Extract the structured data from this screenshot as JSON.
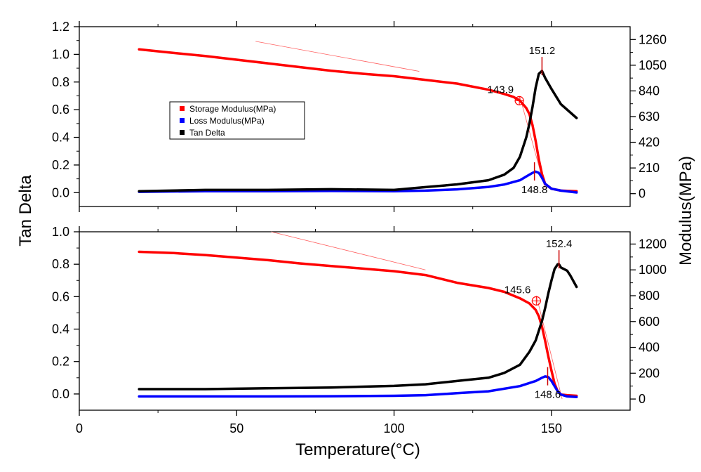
{
  "chart_data": {
    "type": "line",
    "xlabel": "Temperature(°C)",
    "xlim": [
      0,
      175
    ],
    "xticks": [
      0,
      50,
      100,
      150
    ],
    "left_ylabel": "Tan Delta",
    "right_ylabel": "Modulus(MPa)",
    "legend": {
      "placement": "center-left of top panel",
      "entries": [
        "Storage Modulus(MPa)",
        "Loss Modulus(MPa)",
        "Tan Delta"
      ]
    },
    "colors": {
      "storage": "#ff0000",
      "loss": "#0000ff",
      "tan": "#000000",
      "tangent": "#ff6060"
    },
    "panels": [
      {
        "left_ylim": [
          -0.1,
          1.2
        ],
        "left_ticks": [
          "0.0",
          "0.2",
          "0.4",
          "0.6",
          "0.8",
          "1.0",
          "1.2"
        ],
        "right_ylim": [
          -105,
          1365
        ],
        "right_ticks": [
          "0",
          "210",
          "420",
          "630",
          "840",
          "1050",
          "1260"
        ],
        "series": [
          {
            "name": "Storage Modulus(MPa)",
            "axis": "right",
            "x": [
              19,
              30,
              40,
              50,
              60,
              70,
              80,
              90,
              100,
              110,
              120,
              130,
              135,
              138,
              140,
              142,
              143,
              144,
              145,
              146,
              147,
              148,
              150,
              153,
              158
            ],
            "y": [
              1180,
              1150,
              1125,
              1095,
              1065,
              1035,
              1005,
              980,
              960,
              930,
              900,
              850,
              815,
              790,
              760,
              700,
              650,
              560,
              430,
              280,
              160,
              80,
              40,
              25,
              20
            ]
          },
          {
            "name": "Loss Modulus(MPa)",
            "axis": "right",
            "x": [
              19,
              40,
              60,
              80,
              100,
              110,
              120,
              130,
              135,
              140,
              142,
              144,
              145,
              146,
              147,
              148,
              150,
              153,
              158
            ],
            "y": [
              15,
              20,
              20,
              22,
              20,
              25,
              35,
              55,
              75,
              110,
              140,
              170,
              180,
              170,
              130,
              80,
              40,
              25,
              10
            ]
          },
          {
            "name": "Tan Delta",
            "axis": "left",
            "x": [
              19,
              40,
              60,
              80,
              100,
              110,
              120,
              130,
              135,
              138,
              140,
              142,
              143,
              144,
              145,
              146,
              147,
              148,
              150,
              153,
              158
            ],
            "y": [
              0.01,
              0.02,
              0.02,
              0.025,
              0.02,
              0.04,
              0.06,
              0.09,
              0.13,
              0.18,
              0.26,
              0.4,
              0.5,
              0.62,
              0.76,
              0.86,
              0.88,
              0.83,
              0.75,
              0.64,
              0.54
            ]
          }
        ],
        "tangent_lines": [
          [
            [
              56,
              1245
            ],
            [
              108,
              1000
            ]
          ],
          [
            [
              140,
              790
            ],
            [
              148,
              40
            ]
          ]
        ],
        "annotations": [
          {
            "text": "151.2",
            "x": 147,
            "series": "Tan Delta",
            "marker": "tick"
          },
          {
            "text": "143.9",
            "x": 139.8,
            "y": 760,
            "marker": "crosshair"
          },
          {
            "text": "148.8",
            "x": 144.6,
            "series": "Loss Modulus",
            "marker": "tick"
          }
        ]
      },
      {
        "left_ylim": [
          -0.1,
          1.0
        ],
        "left_ticks": [
          "0.0",
          "0.2",
          "0.4",
          "0.6",
          "0.8",
          "1.0"
        ],
        "right_ylim": [
          -86.5,
          1295
        ],
        "right_ticks": [
          "0",
          "200",
          "400",
          "600",
          "800",
          "1000",
          "1200"
        ],
        "series": [
          {
            "name": "Storage Modulus(MPa)",
            "axis": "right",
            "x": [
              19,
              30,
              40,
              50,
              60,
              70,
              80,
              90,
              100,
              110,
              120,
              130,
              135,
              140,
              143,
              145,
              146,
              147,
              148,
              149,
              150,
              151,
              152,
              153,
              155,
              158
            ],
            "y": [
              1140,
              1130,
              1115,
              1095,
              1075,
              1050,
              1030,
              1010,
              990,
              960,
              900,
              860,
              830,
              780,
              740,
              690,
              640,
              560,
              450,
              330,
              220,
              120,
              60,
              35,
              30,
              25
            ]
          },
          {
            "name": "Loss Modulus(MPa)",
            "axis": "right",
            "x": [
              19,
              40,
              60,
              80,
              100,
              110,
              120,
              130,
              140,
              145,
              147,
              148,
              149,
              150,
              151,
              152,
              153,
              155,
              158
            ],
            "y": [
              20,
              20,
              20,
              22,
              25,
              30,
              45,
              60,
              100,
              140,
              165,
              175,
              170,
              140,
              100,
              60,
              35,
              20,
              15
            ]
          },
          {
            "name": "Tan Delta",
            "axis": "left",
            "x": [
              19,
              40,
              60,
              80,
              100,
              110,
              120,
              130,
              135,
              140,
              143,
              145,
              147,
              148,
              149,
              150,
              151,
              152,
              152.4,
              153,
              155,
              156,
              158
            ],
            "y": [
              0.03,
              0.03,
              0.035,
              0.04,
              0.05,
              0.06,
              0.08,
              0.1,
              0.13,
              0.18,
              0.26,
              0.33,
              0.45,
              0.53,
              0.62,
              0.7,
              0.77,
              0.8,
              0.8,
              0.78,
              0.76,
              0.73,
              0.66
            ]
          }
        ],
        "tangent_lines": [
          [
            [
              61,
              1295
            ],
            [
              110,
              1000
            ]
          ],
          [
            [
              145.2,
              800
            ],
            [
              153.4,
              0
            ]
          ]
        ],
        "annotations": [
          {
            "text": "152.4",
            "x": 152.4,
            "series": "Tan Delta",
            "marker": "tick"
          },
          {
            "text": "145.6",
            "x": 145.2,
            "y": 760,
            "marker": "crosshair"
          },
          {
            "text": "148.6",
            "x": 148.8,
            "series": "Loss Modulus",
            "marker": "tick"
          }
        ]
      }
    ]
  }
}
